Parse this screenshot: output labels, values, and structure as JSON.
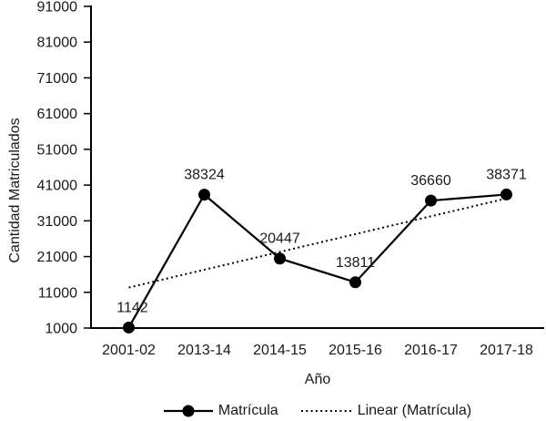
{
  "figure": {
    "background": "#ffffff",
    "ink": "#000000",
    "text_color": "#1a1a1a"
  },
  "chart_data": {
    "type": "line",
    "xlabel": "Año",
    "ylabel": "Cantidad Matriculados",
    "categories": [
      "2001-02",
      "2013-14",
      "2014-15",
      "2015-16",
      "2016-17",
      "2017-18"
    ],
    "series": [
      {
        "name": "Matrícula",
        "style": "solid-line-filled-circle-markers",
        "values": [
          1142,
          38324,
          20447,
          13811,
          36660,
          38371
        ]
      }
    ],
    "data_labels": [
      "1142",
      "38324",
      "20447",
      "13811",
      "36660",
      "38371"
    ],
    "trendline": {
      "name": "Linear (Matrícula)",
      "style": "dotted",
      "endpoints": [
        12327,
        37258
      ]
    },
    "y_ticks": [
      1000,
      11000,
      21000,
      31000,
      41000,
      51000,
      61000,
      71000,
      81000,
      91000
    ],
    "ylim": [
      1000,
      91000
    ],
    "grid": false,
    "legend_position": "bottom"
  },
  "legend": {
    "items": [
      {
        "label": "Matrícula",
        "marker": "solid-line-circle"
      },
      {
        "label": "Linear (Matrícula)",
        "marker": "dotted-line"
      }
    ]
  }
}
